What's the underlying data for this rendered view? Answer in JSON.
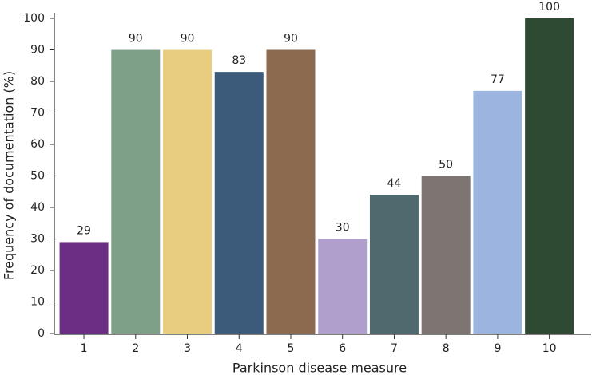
{
  "chart_data": {
    "type": "bar",
    "x_label": "Parkinson disease measure",
    "y_label": "Frequency of documentation (%)",
    "categories": [
      "1",
      "2",
      "3",
      "4",
      "5",
      "6",
      "7",
      "8",
      "9",
      "10"
    ],
    "values": [
      29,
      90,
      90,
      83,
      90,
      30,
      44,
      50,
      77,
      100
    ],
    "colors": [
      "#6c2d84",
      "#7fa088",
      "#e8cc80",
      "#3c5a7a",
      "#8b6a50",
      "#b09fcc",
      "#4f6a6e",
      "#7e7572",
      "#9bb5e0",
      "#2e4a33"
    ],
    "ylim": [
      0,
      100
    ],
    "yticks": [
      0,
      10,
      20,
      30,
      40,
      50,
      60,
      70,
      80,
      90,
      100
    ],
    "grid": false
  }
}
